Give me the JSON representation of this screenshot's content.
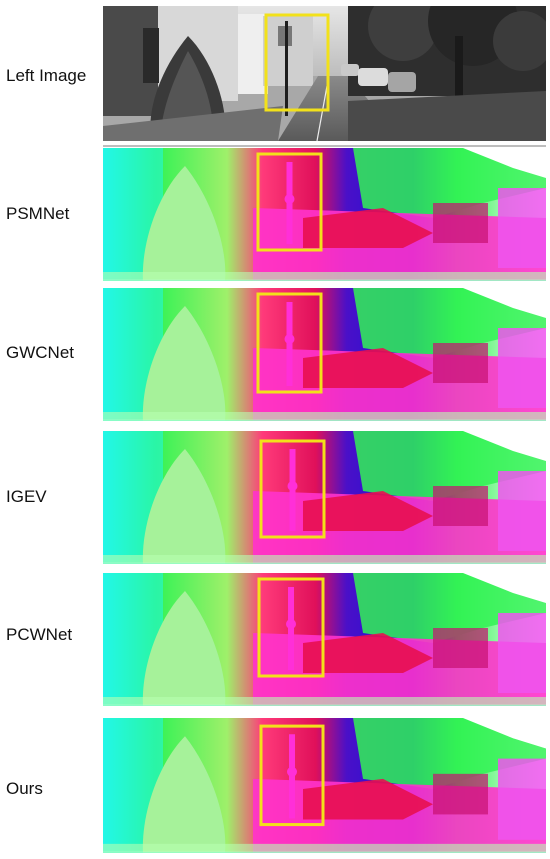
{
  "rows": [
    {
      "label": "Left Image",
      "kind": "rgb"
    },
    {
      "label": "PSMNet",
      "kind": "disparity"
    },
    {
      "label": "GWCNet",
      "kind": "disparity"
    },
    {
      "label": "IGEV",
      "kind": "disparity"
    },
    {
      "label": "PCWNet",
      "kind": "disparity"
    },
    {
      "label": "Ours",
      "kind": "disparity"
    }
  ],
  "colors": {
    "highlight_box": "#f2e11a",
    "pole": "#ff2fd8",
    "deep_blue": "#1a10d8",
    "magenta": "#ff33cc",
    "green": "#33f255",
    "cyan": "#22f7e8",
    "tree": "#a6f29a"
  }
}
